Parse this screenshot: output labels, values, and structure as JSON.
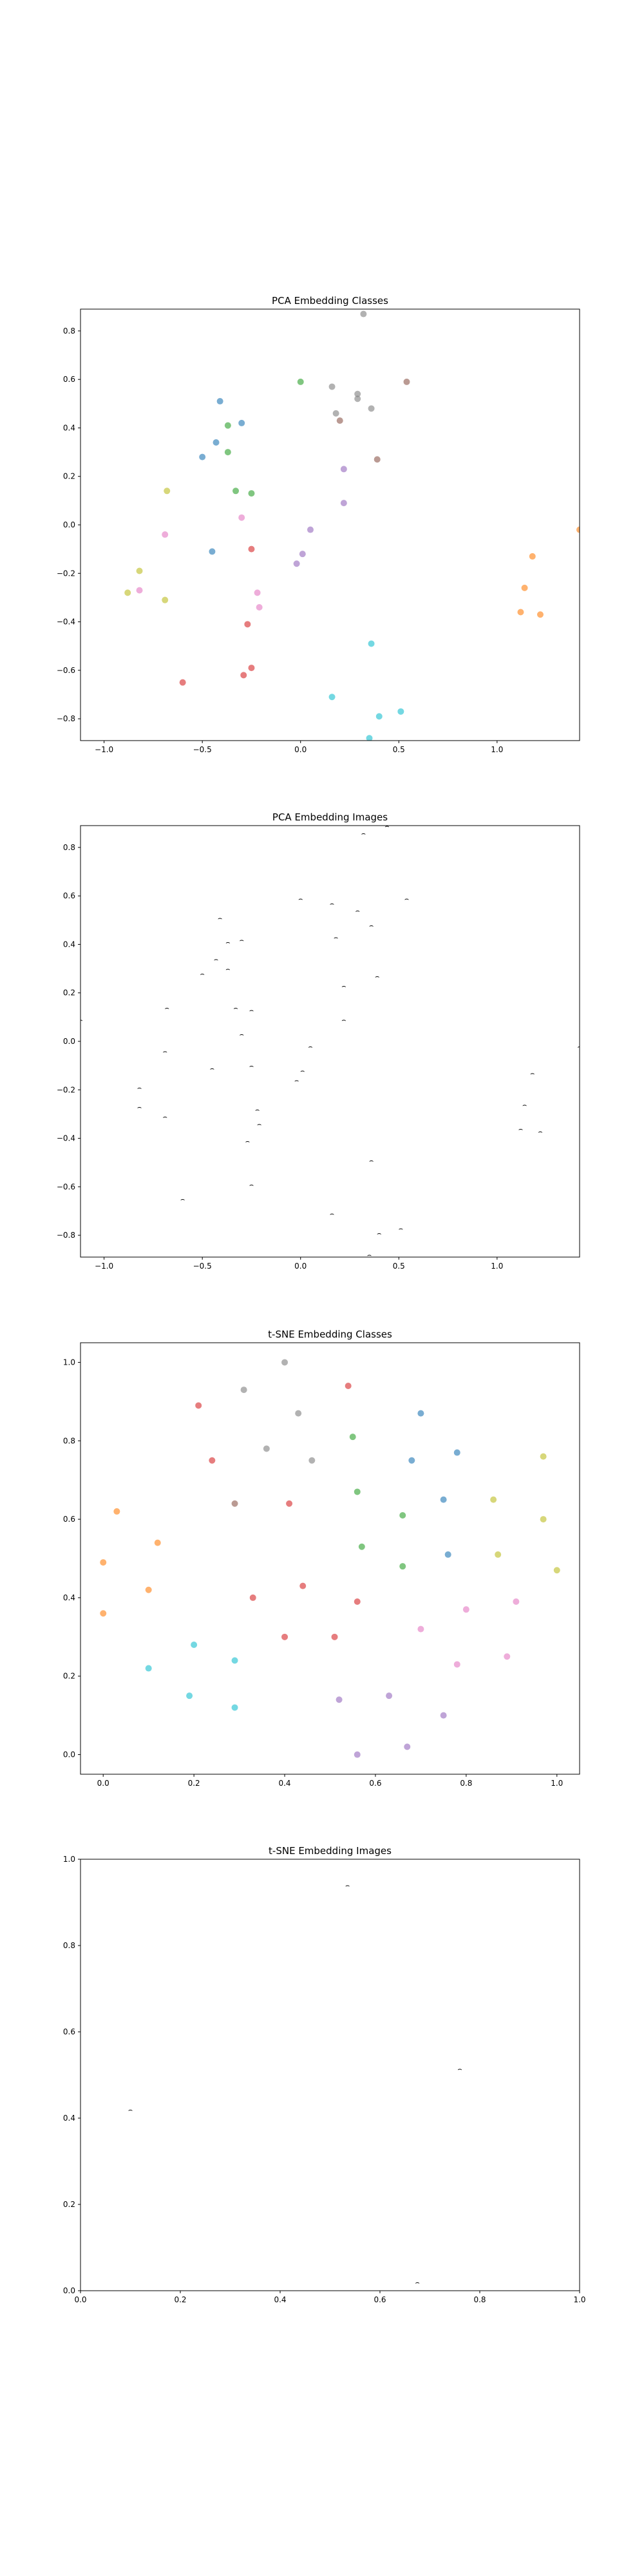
{
  "charts": [
    {
      "title": "PCA Embedding Classes",
      "type": "scatter",
      "xlim": [
        -1.12,
        1.42
      ],
      "ylim": [
        -0.89,
        0.89
      ],
      "xticks": [
        -1.0,
        -0.5,
        0.0,
        0.5,
        1.0
      ],
      "yticks": [
        -0.8,
        -0.6,
        -0.4,
        -0.2,
        0.0,
        0.2,
        0.4,
        0.6,
        0.8
      ],
      "points": [
        {
          "x": 0.32,
          "y": 0.87,
          "c": "gray"
        },
        {
          "x": 0.54,
          "y": 0.59,
          "c": "brown"
        },
        {
          "x": 0.16,
          "y": 0.57,
          "c": "gray"
        },
        {
          "x": 0.29,
          "y": 0.54,
          "c": "gray"
        },
        {
          "x": 0.29,
          "y": 0.52,
          "c": "gray"
        },
        {
          "x": 0.18,
          "y": 0.46,
          "c": "gray"
        },
        {
          "x": 0.36,
          "y": 0.48,
          "c": "gray"
        },
        {
          "x": 0.2,
          "y": 0.43,
          "c": "brown"
        },
        {
          "x": 0.39,
          "y": 0.27,
          "c": "brown"
        },
        {
          "x": 0.0,
          "y": 0.59,
          "c": "green"
        },
        {
          "x": -0.37,
          "y": 0.41,
          "c": "green"
        },
        {
          "x": -0.37,
          "y": 0.3,
          "c": "green"
        },
        {
          "x": -0.33,
          "y": 0.14,
          "c": "green"
        },
        {
          "x": -0.25,
          "y": 0.13,
          "c": "green"
        },
        {
          "x": -0.41,
          "y": 0.51,
          "c": "blue"
        },
        {
          "x": -0.3,
          "y": 0.42,
          "c": "blue"
        },
        {
          "x": -0.43,
          "y": 0.34,
          "c": "blue"
        },
        {
          "x": -0.5,
          "y": 0.28,
          "c": "blue"
        },
        {
          "x": -0.45,
          "y": -0.11,
          "c": "blue"
        },
        {
          "x": 0.22,
          "y": 0.23,
          "c": "purple"
        },
        {
          "x": 0.22,
          "y": 0.09,
          "c": "purple"
        },
        {
          "x": 0.05,
          "y": -0.02,
          "c": "purple"
        },
        {
          "x": 0.01,
          "y": -0.12,
          "c": "purple"
        },
        {
          "x": -0.02,
          "y": -0.16,
          "c": "purple"
        },
        {
          "x": -0.68,
          "y": 0.14,
          "c": "olive"
        },
        {
          "x": -0.82,
          "y": -0.19,
          "c": "olive"
        },
        {
          "x": -0.88,
          "y": -0.28,
          "c": "olive"
        },
        {
          "x": -0.69,
          "y": -0.31,
          "c": "olive"
        },
        {
          "x": -0.69,
          "y": -0.04,
          "c": "pink"
        },
        {
          "x": -0.82,
          "y": -0.27,
          "c": "pink"
        },
        {
          "x": -0.3,
          "y": 0.03,
          "c": "pink"
        },
        {
          "x": -0.22,
          "y": -0.28,
          "c": "pink"
        },
        {
          "x": -0.21,
          "y": -0.34,
          "c": "pink"
        },
        {
          "x": -0.25,
          "y": -0.1,
          "c": "red"
        },
        {
          "x": -0.27,
          "y": -0.41,
          "c": "red"
        },
        {
          "x": -0.25,
          "y": -0.59,
          "c": "red"
        },
        {
          "x": -0.29,
          "y": -0.62,
          "c": "red"
        },
        {
          "x": -0.6,
          "y": -0.65,
          "c": "red"
        },
        {
          "x": 1.18,
          "y": -0.13,
          "c": "orange"
        },
        {
          "x": 1.14,
          "y": -0.26,
          "c": "orange"
        },
        {
          "x": 1.12,
          "y": -0.36,
          "c": "orange"
        },
        {
          "x": 1.22,
          "y": -0.37,
          "c": "orange"
        },
        {
          "x": 1.42,
          "y": -0.02,
          "c": "orange"
        },
        {
          "x": 0.36,
          "y": -0.49,
          "c": "cyan"
        },
        {
          "x": 0.16,
          "y": -0.71,
          "c": "cyan"
        },
        {
          "x": 0.4,
          "y": -0.79,
          "c": "cyan"
        },
        {
          "x": 0.51,
          "y": -0.77,
          "c": "cyan"
        },
        {
          "x": 0.35,
          "y": -0.88,
          "c": "cyan"
        }
      ]
    },
    {
      "title": "PCA Embedding Images",
      "type": "scatter",
      "xlim": [
        -1.12,
        1.42
      ],
      "ylim": [
        -0.89,
        0.89
      ],
      "xticks": [
        -1.0,
        -0.5,
        0.0,
        0.5,
        1.0
      ],
      "yticks": [
        -0.8,
        -0.6,
        -0.4,
        -0.2,
        0.0,
        0.2,
        0.4,
        0.6,
        0.8
      ],
      "glyphs": [
        {
          "x": 0.32,
          "y": 0.86,
          "g": "⌢"
        },
        {
          "x": 0.44,
          "y": 0.89,
          "g": "⌢"
        },
        {
          "x": 0.54,
          "y": 0.59,
          "g": "⌢"
        },
        {
          "x": 0.16,
          "y": 0.57,
          "g": "⌢"
        },
        {
          "x": 0.29,
          "y": 0.54,
          "g": "⌢"
        },
        {
          "x": 0.18,
          "y": 0.43,
          "g": "⌢"
        },
        {
          "x": 0.36,
          "y": 0.48,
          "g": "⌢"
        },
        {
          "x": 0.39,
          "y": 0.27,
          "g": "⌢"
        },
        {
          "x": 0.0,
          "y": 0.59,
          "g": "⌢"
        },
        {
          "x": -0.41,
          "y": 0.51,
          "g": "⌢"
        },
        {
          "x": -0.37,
          "y": 0.41,
          "g": "⌢"
        },
        {
          "x": -0.3,
          "y": 0.42,
          "g": "⌢"
        },
        {
          "x": -0.43,
          "y": 0.34,
          "g": "⌢"
        },
        {
          "x": -0.37,
          "y": 0.3,
          "g": "⌢"
        },
        {
          "x": -0.5,
          "y": 0.28,
          "g": "⌢"
        },
        {
          "x": 0.22,
          "y": 0.23,
          "g": "⌢"
        },
        {
          "x": -0.68,
          "y": 0.14,
          "g": "⌢"
        },
        {
          "x": -0.33,
          "y": 0.14,
          "g": "⌢"
        },
        {
          "x": -0.25,
          "y": 0.13,
          "g": "⌢"
        },
        {
          "x": 0.22,
          "y": 0.09,
          "g": "⌢"
        },
        {
          "x": -1.12,
          "y": 0.09,
          "g": "⌢"
        },
        {
          "x": -0.3,
          "y": 0.03,
          "g": "⌢"
        },
        {
          "x": 0.05,
          "y": -0.02,
          "g": "⌢"
        },
        {
          "x": -0.69,
          "y": -0.04,
          "g": "⌢"
        },
        {
          "x": 1.42,
          "y": -0.02,
          "g": "⌢"
        },
        {
          "x": -0.45,
          "y": -0.11,
          "g": "⌢"
        },
        {
          "x": -0.25,
          "y": -0.1,
          "g": "⌢"
        },
        {
          "x": 0.01,
          "y": -0.12,
          "g": "⌢"
        },
        {
          "x": -0.02,
          "y": -0.16,
          "g": "⌢"
        },
        {
          "x": 1.18,
          "y": -0.13,
          "g": "⌢"
        },
        {
          "x": -0.82,
          "y": -0.19,
          "g": "⌢"
        },
        {
          "x": -0.22,
          "y": -0.28,
          "g": "⌢"
        },
        {
          "x": -0.82,
          "y": -0.27,
          "g": "⌢"
        },
        {
          "x": 1.14,
          "y": -0.26,
          "g": "⌢"
        },
        {
          "x": -0.69,
          "y": -0.31,
          "g": "⌢"
        },
        {
          "x": -0.21,
          "y": -0.34,
          "g": "⌢"
        },
        {
          "x": 1.12,
          "y": -0.36,
          "g": "⌢"
        },
        {
          "x": 1.22,
          "y": -0.37,
          "g": "⌢"
        },
        {
          "x": -0.27,
          "y": -0.41,
          "g": "⌢"
        },
        {
          "x": 0.36,
          "y": -0.49,
          "g": "⌢"
        },
        {
          "x": -0.25,
          "y": -0.59,
          "g": "⌢"
        },
        {
          "x": -0.6,
          "y": -0.65,
          "g": "⌢"
        },
        {
          "x": 0.16,
          "y": -0.71,
          "g": "⌢"
        },
        {
          "x": 0.4,
          "y": -0.79,
          "g": "⌢"
        },
        {
          "x": 0.51,
          "y": -0.77,
          "g": "⌢"
        },
        {
          "x": 0.35,
          "y": -0.88,
          "g": "⌢"
        }
      ]
    },
    {
      "title": "t-SNE Embedding Classes",
      "type": "scatter",
      "xlim": [
        -0.05,
        1.05
      ],
      "ylim": [
        -0.05,
        1.05
      ],
      "xticks": [
        0.0,
        0.2,
        0.4,
        0.6,
        0.8,
        1.0
      ],
      "yticks": [
        0.0,
        0.2,
        0.4,
        0.6,
        0.8,
        1.0
      ],
      "points": [
        {
          "x": 0.4,
          "y": 1.0,
          "c": "gray"
        },
        {
          "x": 0.31,
          "y": 0.93,
          "c": "gray"
        },
        {
          "x": 0.43,
          "y": 0.87,
          "c": "gray"
        },
        {
          "x": 0.36,
          "y": 0.78,
          "c": "gray"
        },
        {
          "x": 0.46,
          "y": 0.75,
          "c": "gray"
        },
        {
          "x": 0.21,
          "y": 0.89,
          "c": "red"
        },
        {
          "x": 0.24,
          "y": 0.75,
          "c": "red"
        },
        {
          "x": 0.54,
          "y": 0.94,
          "c": "red"
        },
        {
          "x": 0.41,
          "y": 0.64,
          "c": "red"
        },
        {
          "x": 0.29,
          "y": 0.64,
          "c": "brown"
        },
        {
          "x": 0.55,
          "y": 0.81,
          "c": "green"
        },
        {
          "x": 0.56,
          "y": 0.67,
          "c": "green"
        },
        {
          "x": 0.57,
          "y": 0.53,
          "c": "green"
        },
        {
          "x": 0.66,
          "y": 0.61,
          "c": "green"
        },
        {
          "x": 0.66,
          "y": 0.48,
          "c": "green"
        },
        {
          "x": 0.7,
          "y": 0.87,
          "c": "blue"
        },
        {
          "x": 0.68,
          "y": 0.75,
          "c": "blue"
        },
        {
          "x": 0.78,
          "y": 0.77,
          "c": "blue"
        },
        {
          "x": 0.75,
          "y": 0.65,
          "c": "blue"
        },
        {
          "x": 0.76,
          "y": 0.51,
          "c": "blue"
        },
        {
          "x": 0.97,
          "y": 0.76,
          "c": "olive"
        },
        {
          "x": 0.86,
          "y": 0.65,
          "c": "olive"
        },
        {
          "x": 0.97,
          "y": 0.6,
          "c": "olive"
        },
        {
          "x": 0.87,
          "y": 0.51,
          "c": "olive"
        },
        {
          "x": 1.0,
          "y": 0.47,
          "c": "olive"
        },
        {
          "x": 0.03,
          "y": 0.62,
          "c": "orange"
        },
        {
          "x": 0.12,
          "y": 0.54,
          "c": "orange"
        },
        {
          "x": 0.0,
          "y": 0.49,
          "c": "orange"
        },
        {
          "x": 0.1,
          "y": 0.42,
          "c": "orange"
        },
        {
          "x": 0.0,
          "y": 0.36,
          "c": "orange"
        },
        {
          "x": 0.33,
          "y": 0.4,
          "c": "red"
        },
        {
          "x": 0.44,
          "y": 0.43,
          "c": "red"
        },
        {
          "x": 0.56,
          "y": 0.39,
          "c": "red"
        },
        {
          "x": 0.4,
          "y": 0.3,
          "c": "red"
        },
        {
          "x": 0.51,
          "y": 0.3,
          "c": "red"
        },
        {
          "x": 0.7,
          "y": 0.32,
          "c": "pink"
        },
        {
          "x": 0.8,
          "y": 0.37,
          "c": "pink"
        },
        {
          "x": 0.91,
          "y": 0.39,
          "c": "pink"
        },
        {
          "x": 0.78,
          "y": 0.23,
          "c": "pink"
        },
        {
          "x": 0.89,
          "y": 0.25,
          "c": "pink"
        },
        {
          "x": 0.2,
          "y": 0.28,
          "c": "cyan"
        },
        {
          "x": 0.1,
          "y": 0.22,
          "c": "cyan"
        },
        {
          "x": 0.29,
          "y": 0.24,
          "c": "cyan"
        },
        {
          "x": 0.19,
          "y": 0.15,
          "c": "cyan"
        },
        {
          "x": 0.29,
          "y": 0.12,
          "c": "cyan"
        },
        {
          "x": 0.52,
          "y": 0.14,
          "c": "purple"
        },
        {
          "x": 0.63,
          "y": 0.15,
          "c": "purple"
        },
        {
          "x": 0.75,
          "y": 0.1,
          "c": "purple"
        },
        {
          "x": 0.56,
          "y": 0.0,
          "c": "purple"
        },
        {
          "x": 0.67,
          "y": 0.02,
          "c": "purple"
        }
      ]
    },
    {
      "title": "t-SNE Embedding Images",
      "type": "scatter",
      "xlim": [
        0.0,
        1.0
      ],
      "ylim": [
        0.0,
        1.0
      ],
      "xticks": [
        0.0,
        0.2,
        0.4,
        0.6,
        0.8,
        1.0
      ],
      "yticks": [
        0.0,
        0.2,
        0.4,
        0.6,
        0.8,
        1.0
      ],
      "glyphs": [
        {
          "x": 0.535,
          "y": 0.94,
          "g": "⌢"
        },
        {
          "x": 0.76,
          "y": 0.515,
          "g": "⌢"
        },
        {
          "x": 0.1,
          "y": 0.42,
          "g": "⌢"
        },
        {
          "x": 0.675,
          "y": 0.02,
          "g": "⌢"
        }
      ]
    }
  ],
  "colors": {
    "blue": "#1f77b4",
    "orange": "#ff7f0e",
    "green": "#2ca02c",
    "red": "#d62728",
    "purple": "#9467bd",
    "brown": "#8c564b",
    "pink": "#e377c2",
    "gray": "#7f7f7f",
    "olive": "#bcbd22",
    "cyan": "#17becf"
  }
}
